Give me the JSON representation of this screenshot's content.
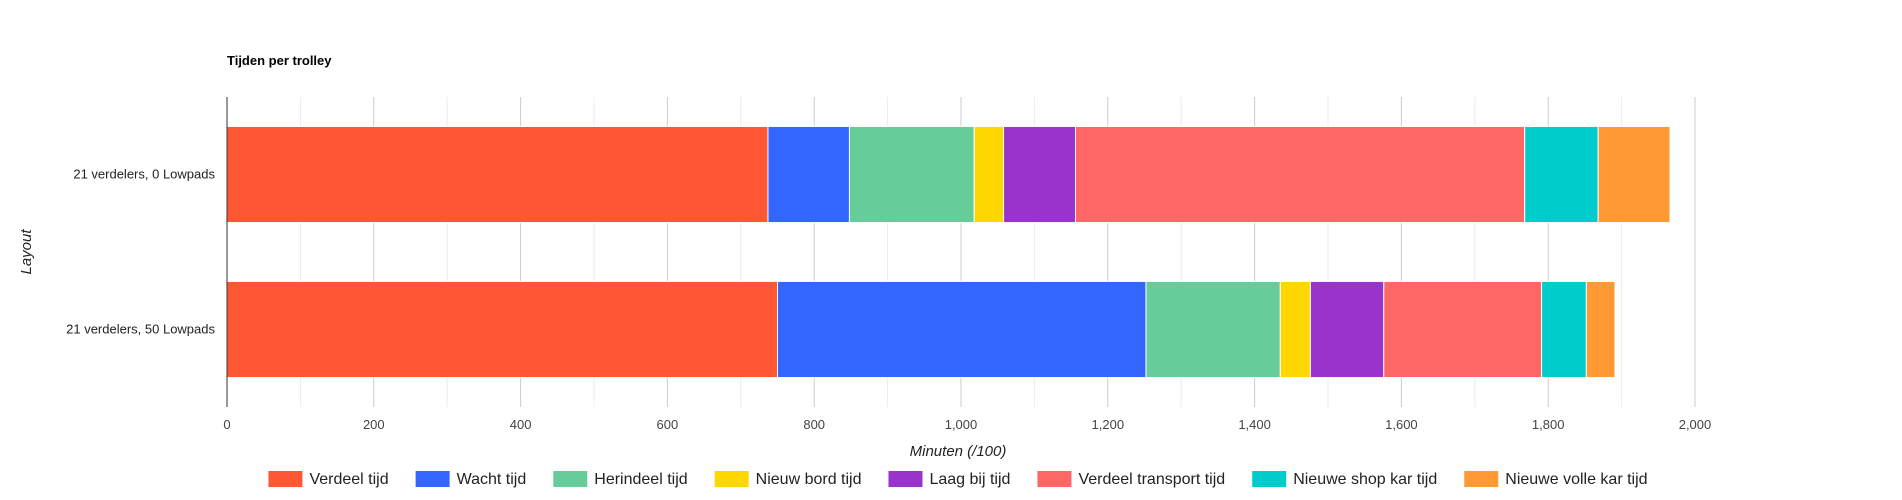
{
  "chart_data": {
    "type": "bar",
    "orientation": "horizontal",
    "stacked": true,
    "title": "Tijden per trolley",
    "xlabel": "Minuten (/100)",
    "ylabel": "Layout",
    "xlim": [
      0,
      2000
    ],
    "x_ticks": [
      "0",
      "200",
      "400",
      "600",
      "800",
      "1,000",
      "1,200",
      "1,400",
      "1,600",
      "1,800",
      "2,000"
    ],
    "grid": true,
    "legend_position": "bottom",
    "categories": [
      "21 verdelers, 0 Lowpads",
      "21 verdelers, 50 Lowpads"
    ],
    "series": [
      {
        "name": "Verdeel tijd",
        "color": "#ff5733",
        "values": [
          737,
          750
        ]
      },
      {
        "name": "Wacht tijd",
        "color": "#3366ff",
        "values": [
          111,
          502
        ]
      },
      {
        "name": "Herindeel tijd",
        "color": "#66cc99",
        "values": [
          170,
          183
        ]
      },
      {
        "name": "Nieuw bord tijd",
        "color": "#ffd700",
        "values": [
          40,
          41
        ]
      },
      {
        "name": "Laag bij tijd",
        "color": "#9933cc",
        "values": [
          98,
          100
        ]
      },
      {
        "name": "Verdeel transport tijd",
        "color": "#ff6666",
        "values": [
          612,
          215
        ]
      },
      {
        "name": "Nieuwe shop kar tijd",
        "color": "#00cccc",
        "values": [
          100,
          61
        ]
      },
      {
        "name": "Nieuwe volle kar tijd",
        "color": "#ff9933",
        "values": [
          98,
          39
        ]
      }
    ]
  }
}
